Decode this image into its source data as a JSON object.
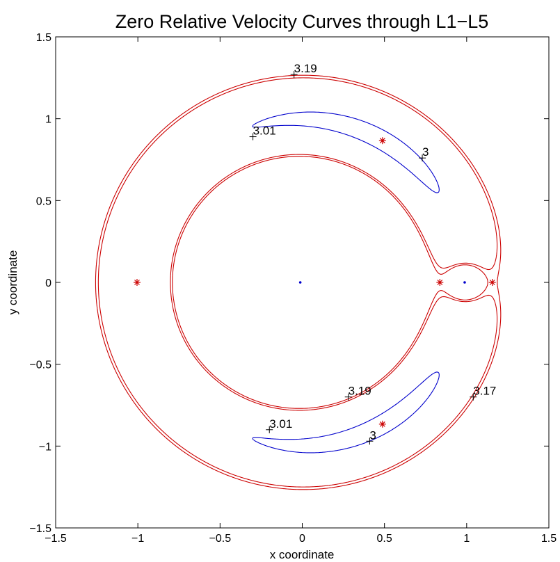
{
  "chart_data": {
    "type": "line",
    "title": "Zero Relative Velocity Curves through L1−L5",
    "xlabel": "x coordinate",
    "ylabel": "y coordinate",
    "xlim": [
      -1.5,
      1.5
    ],
    "ylim": [
      -1.5,
      1.5
    ],
    "x_ticks": [
      "−1.5",
      "−1",
      "−0.5",
      "0",
      "0.5",
      "1",
      "1.5"
    ],
    "y_ticks": [
      "−1.5",
      "−1",
      "−0.5",
      "0",
      "0.5",
      "1",
      "1.5"
    ],
    "grid": false,
    "mu": 0.0121,
    "colors": {
      "red": "#cc0000",
      "dark_red": "#550000",
      "blue": "#0000cc",
      "black": "#000000"
    },
    "contours": [
      {
        "jacobi": 3.19,
        "color": "red"
      },
      {
        "jacobi": 3.17,
        "color": "red"
      },
      {
        "jacobi": 3.01,
        "color": "blue"
      },
      {
        "jacobi": 3.0,
        "color": "blue"
      }
    ],
    "lagrange_points": [
      {
        "name": "L1",
        "x": 0.837,
        "y": 0.0
      },
      {
        "name": "L2",
        "x": 1.156,
        "y": 0.0
      },
      {
        "name": "L3",
        "x": -1.005,
        "y": 0.0
      },
      {
        "name": "L4",
        "x": 0.488,
        "y": 0.866
      },
      {
        "name": "L5",
        "x": 0.488,
        "y": -0.866
      }
    ],
    "primaries": [
      {
        "name": "primary",
        "x": -0.0121,
        "y": 0.0
      },
      {
        "name": "secondary",
        "x": 0.9879,
        "y": 0.0
      }
    ],
    "contour_labels": [
      {
        "text": "3.19",
        "x": -0.05,
        "y": 1.27
      },
      {
        "text": "3.01",
        "x": -0.3,
        "y": 0.89
      },
      {
        "text": "3",
        "x": 0.73,
        "y": 0.76
      },
      {
        "text": "3.19",
        "x": 0.28,
        "y": -0.7
      },
      {
        "text": "3.17",
        "x": 1.04,
        "y": -0.7
      },
      {
        "text": "3.01",
        "x": -0.2,
        "y": -0.9
      },
      {
        "text": "3",
        "x": 0.41,
        "y": -0.97
      }
    ]
  }
}
